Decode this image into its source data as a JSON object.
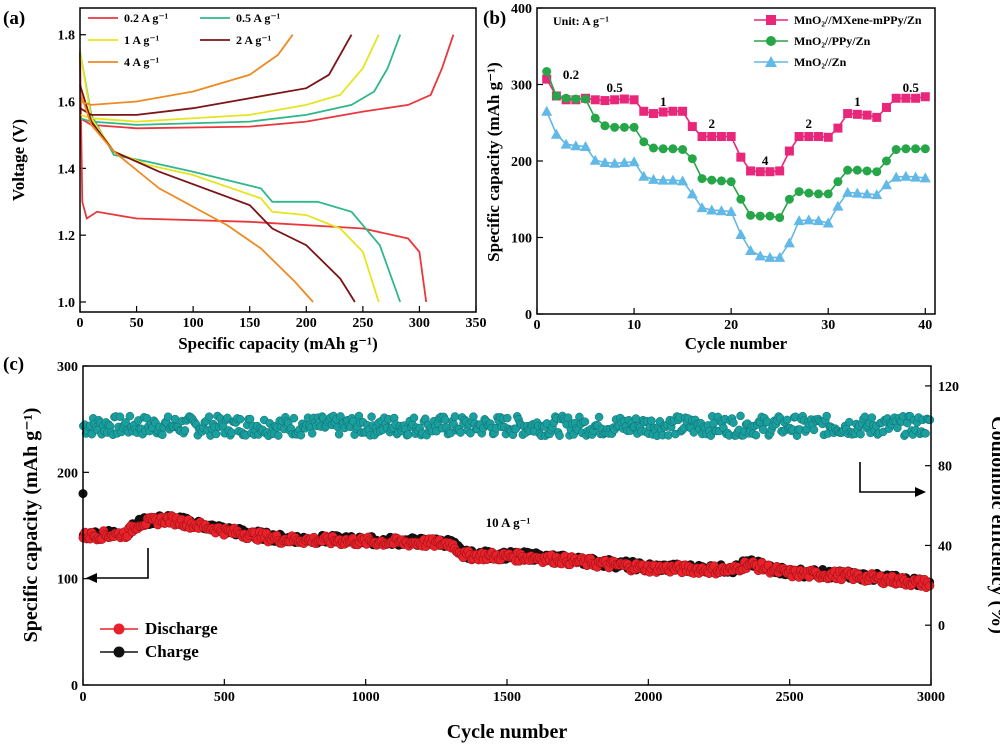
{
  "chart_data": [
    {
      "panel": "(a)",
      "type": "line",
      "xlabel": "Specific capacity (mAh g⁻¹)",
      "ylabel": "Voltage (V)",
      "xlim": [
        0,
        350
      ],
      "ylim": [
        0.97,
        1.88
      ],
      "xticks": [
        0,
        50,
        100,
        150,
        200,
        250,
        300,
        350
      ],
      "yticks": [
        1.0,
        1.2,
        1.4,
        1.6,
        1.8
      ],
      "legend": [
        "0.2 A g⁻¹",
        "0.5 A g⁻¹",
        "1 A g⁻¹",
        "2 A g⁻¹",
        "4 A g⁻¹"
      ],
      "colors": [
        "#e8383d",
        "#2eb88a",
        "#e6e41e",
        "#7a1416",
        "#ee8a24"
      ],
      "series": [
        {
          "name": "0.2 A g⁻¹",
          "charge": [
            [
              0,
              1.55
            ],
            [
              10,
              1.53
            ],
            [
              50,
              1.52
            ],
            [
              150,
              1.525
            ],
            [
              200,
              1.54
            ],
            [
              250,
              1.57
            ],
            [
              290,
              1.59
            ],
            [
              310,
              1.62
            ],
            [
              320,
              1.7
            ],
            [
              330,
              1.8
            ]
          ],
          "discharge": [
            [
              0,
              1.75
            ],
            [
              2,
              1.3
            ],
            [
              6,
              1.25
            ],
            [
              15,
              1.27
            ],
            [
              50,
              1.25
            ],
            [
              150,
              1.24
            ],
            [
              250,
              1.22
            ],
            [
              290,
              1.19
            ],
            [
              300,
              1.15
            ],
            [
              306,
              1.0
            ]
          ]
        },
        {
          "name": "0.5 A g⁻¹",
          "charge": [
            [
              0,
              1.55
            ],
            [
              10,
              1.54
            ],
            [
              50,
              1.53
            ],
            [
              150,
              1.54
            ],
            [
              200,
              1.56
            ],
            [
              240,
              1.59
            ],
            [
              260,
              1.63
            ],
            [
              272,
              1.7
            ],
            [
              283,
              1.8
            ]
          ],
          "discharge": [
            [
              0,
              1.75
            ],
            [
              10,
              1.56
            ],
            [
              30,
              1.44
            ],
            [
              60,
              1.42
            ],
            [
              100,
              1.39
            ],
            [
              160,
              1.34
            ],
            [
              170,
              1.3
            ],
            [
              210,
              1.3
            ],
            [
              240,
              1.27
            ],
            [
              265,
              1.17
            ],
            [
              283,
              1.0
            ]
          ]
        },
        {
          "name": "1 A g⁻¹",
          "charge": [
            [
              0,
              1.56
            ],
            [
              10,
              1.55
            ],
            [
              50,
              1.54
            ],
            [
              150,
              1.56
            ],
            [
              200,
              1.59
            ],
            [
              230,
              1.62
            ],
            [
              250,
              1.7
            ],
            [
              264,
              1.8
            ]
          ],
          "discharge": [
            [
              0,
              1.75
            ],
            [
              10,
              1.55
            ],
            [
              30,
              1.45
            ],
            [
              60,
              1.41
            ],
            [
              100,
              1.38
            ],
            [
              160,
              1.31
            ],
            [
              170,
              1.27
            ],
            [
              200,
              1.26
            ],
            [
              230,
              1.22
            ],
            [
              250,
              1.15
            ],
            [
              264,
              1.0
            ]
          ]
        },
        {
          "name": "2 A g⁻¹",
          "charge": [
            [
              0,
              1.58
            ],
            [
              10,
              1.56
            ],
            [
              50,
              1.56
            ],
            [
              100,
              1.58
            ],
            [
              150,
              1.61
            ],
            [
              200,
              1.64
            ],
            [
              220,
              1.68
            ],
            [
              240,
              1.8
            ]
          ],
          "discharge": [
            [
              0,
              1.65
            ],
            [
              10,
              1.54
            ],
            [
              30,
              1.45
            ],
            [
              70,
              1.39
            ],
            [
              150,
              1.29
            ],
            [
              170,
              1.22
            ],
            [
              200,
              1.17
            ],
            [
              230,
              1.07
            ],
            [
              243,
              1.0
            ]
          ]
        },
        {
          "name": "4 A g⁻¹",
          "charge": [
            [
              0,
              1.6
            ],
            [
              10,
              1.59
            ],
            [
              50,
              1.6
            ],
            [
              100,
              1.63
            ],
            [
              150,
              1.68
            ],
            [
              175,
              1.74
            ],
            [
              188,
              1.8
            ]
          ],
          "discharge": [
            [
              0,
              1.63
            ],
            [
              10,
              1.53
            ],
            [
              30,
              1.45
            ],
            [
              70,
              1.34
            ],
            [
              130,
              1.23
            ],
            [
              160,
              1.16
            ],
            [
              190,
              1.06
            ],
            [
              206,
              1.0
            ]
          ]
        }
      ]
    },
    {
      "panel": "(b)",
      "type": "line",
      "unit_label": "Unit: A g⁻¹",
      "xlabel": "Cycle number",
      "ylabel": "Specific capacity (mAh g⁻¹)",
      "xlim": [
        0,
        41
      ],
      "ylim": [
        0,
        400
      ],
      "xticks": [
        0,
        10,
        20,
        30,
        40
      ],
      "yticks": [
        0,
        100,
        200,
        300,
        400
      ],
      "rate_labels": [
        {
          "text": "0.2",
          "x": 3.5,
          "y": 307
        },
        {
          "text": "0.5",
          "x": 8,
          "y": 290
        },
        {
          "text": "1",
          "x": 13,
          "y": 272
        },
        {
          "text": "2",
          "x": 18,
          "y": 243
        },
        {
          "text": "4",
          "x": 23.5,
          "y": 195
        },
        {
          "text": "2",
          "x": 28,
          "y": 243
        },
        {
          "text": "1",
          "x": 33,
          "y": 272
        },
        {
          "text": "0.5",
          "x": 38.5,
          "y": 290
        }
      ],
      "series": [
        {
          "name": "MnO₂//MXene-mPPy/Zn",
          "color": "#e8267a",
          "marker": "square",
          "values": [
            307,
            285,
            280,
            280,
            282,
            280,
            279,
            280,
            281,
            280,
            265,
            262,
            264,
            265,
            265,
            245,
            232,
            232,
            232,
            232,
            205,
            187,
            186,
            186,
            187,
            213,
            232,
            232,
            232,
            231,
            243,
            262,
            261,
            260,
            257,
            270,
            282,
            282,
            282,
            284
          ]
        },
        {
          "name": "MnO₂//PPy/Zn",
          "color": "#26a649",
          "marker": "circle",
          "values": [
            317,
            285,
            282,
            281,
            281,
            256,
            246,
            244,
            244,
            244,
            225,
            217,
            216,
            216,
            215,
            203,
            177,
            175,
            174,
            173,
            150,
            129,
            128,
            128,
            126,
            150,
            160,
            158,
            157,
            157,
            173,
            188,
            188,
            187,
            186,
            200,
            215,
            216,
            216,
            216
          ]
        },
        {
          "name": "MnO₂//Zn",
          "color": "#62b8e6",
          "marker": "triangle",
          "values": [
            265,
            235,
            222,
            220,
            219,
            201,
            198,
            197,
            198,
            199,
            180,
            176,
            175,
            175,
            174,
            157,
            139,
            136,
            135,
            134,
            104,
            83,
            76,
            74,
            74,
            93,
            122,
            123,
            122,
            119,
            141,
            159,
            158,
            157,
            156,
            169,
            179,
            180,
            179,
            178
          ]
        }
      ]
    },
    {
      "panel": "(c)",
      "type": "scatter",
      "annotation": "10 A g⁻¹",
      "xlabel": "Cycle number",
      "ylabel_left": "Specific capacity (mAh g⁻¹)",
      "ylabel_right": "Coulombic efficiency (%)",
      "xlim": [
        0,
        3000
      ],
      "ylim_left": [
        0,
        300
      ],
      "ylim_right": [
        -30,
        130
      ],
      "xticks": [
        0,
        500,
        1000,
        1500,
        2000,
        2500,
        3000
      ],
      "yticks_left": [
        0,
        100,
        200,
        300
      ],
      "yticks_right": [
        0,
        40,
        80,
        120
      ],
      "legend": [
        "Discharge",
        "Charge"
      ],
      "discharge_trend": [
        [
          0,
          140
        ],
        [
          150,
          142
        ],
        [
          200,
          152
        ],
        [
          300,
          156
        ],
        [
          500,
          145
        ],
        [
          700,
          137
        ],
        [
          1000,
          135
        ],
        [
          1300,
          133
        ],
        [
          1350,
          122
        ],
        [
          1600,
          120
        ],
        [
          1800,
          115
        ],
        [
          2000,
          110
        ],
        [
          2300,
          108
        ],
        [
          2350,
          114
        ],
        [
          2500,
          105
        ],
        [
          2700,
          103
        ],
        [
          3000,
          95
        ]
      ],
      "charge_trend": [
        [
          0,
          141
        ],
        [
          150,
          143
        ],
        [
          200,
          153
        ],
        [
          300,
          157
        ],
        [
          500,
          146
        ],
        [
          700,
          138
        ],
        [
          1000,
          136
        ],
        [
          1300,
          134
        ],
        [
          1350,
          123
        ],
        [
          1600,
          121
        ],
        [
          1800,
          116
        ],
        [
          2000,
          111
        ],
        [
          2300,
          109
        ],
        [
          2350,
          115
        ],
        [
          2500,
          106
        ],
        [
          2700,
          104
        ],
        [
          3000,
          96
        ]
      ],
      "charge_first_point": [
        0,
        180
      ],
      "coulombic_efficiency": 100,
      "ce_range": [
        95,
        105
      ],
      "colors": {
        "discharge": "#e8212a",
        "charge": "#111111",
        "ce": "#1a9e9e"
      }
    }
  ]
}
